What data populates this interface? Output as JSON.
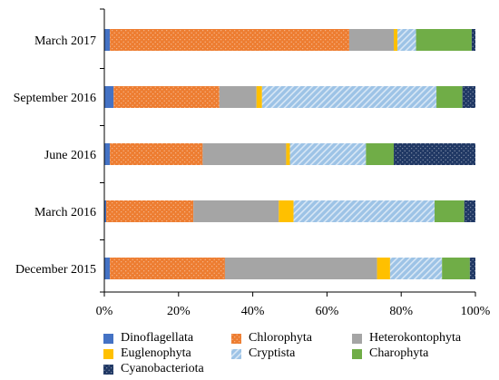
{
  "chart_data": {
    "type": "bar",
    "orientation": "horizontal",
    "stacked": true,
    "percent": true,
    "categories": [
      "March 2017",
      "September 2016",
      "June 2016",
      "March 2016",
      "December 2015"
    ],
    "series": [
      {
        "name": "Dinoflagellata",
        "color": "#4472C4",
        "pattern": "solid",
        "values": [
          1.5,
          2.5,
          1.5,
          0.5,
          1.5
        ]
      },
      {
        "name": "Chlorophyta",
        "color": "#ED7D31",
        "pattern": "dots",
        "values": [
          64.5,
          28.5,
          25.0,
          23.5,
          31.0
        ]
      },
      {
        "name": "Heterokontophyta",
        "color": "#A5A5A5",
        "pattern": "solid",
        "values": [
          12.0,
          10.0,
          22.5,
          23.0,
          41.0
        ]
      },
      {
        "name": "Euglenophyta",
        "color": "#FFC000",
        "pattern": "solid",
        "values": [
          1.0,
          1.5,
          1.0,
          4.0,
          3.5
        ]
      },
      {
        "name": "Cryptista",
        "color": "#9DC3E6",
        "pattern": "stripes",
        "values": [
          5.0,
          47.0,
          20.5,
          38.0,
          14.0
        ]
      },
      {
        "name": "Charophyta",
        "color": "#70AD47",
        "pattern": "solid",
        "values": [
          15.0,
          7.0,
          7.5,
          8.0,
          7.5
        ]
      },
      {
        "name": "Cyanobacteriota",
        "color": "#203864",
        "pattern": "dots",
        "values": [
          1.0,
          3.5,
          22.0,
          3.0,
          1.5
        ]
      }
    ],
    "xlim": [
      0,
      100
    ],
    "xticks": [
      "0%",
      "20%",
      "40%",
      "60%",
      "80%",
      "100%"
    ],
    "grid": false,
    "legend_position": "bottom"
  }
}
